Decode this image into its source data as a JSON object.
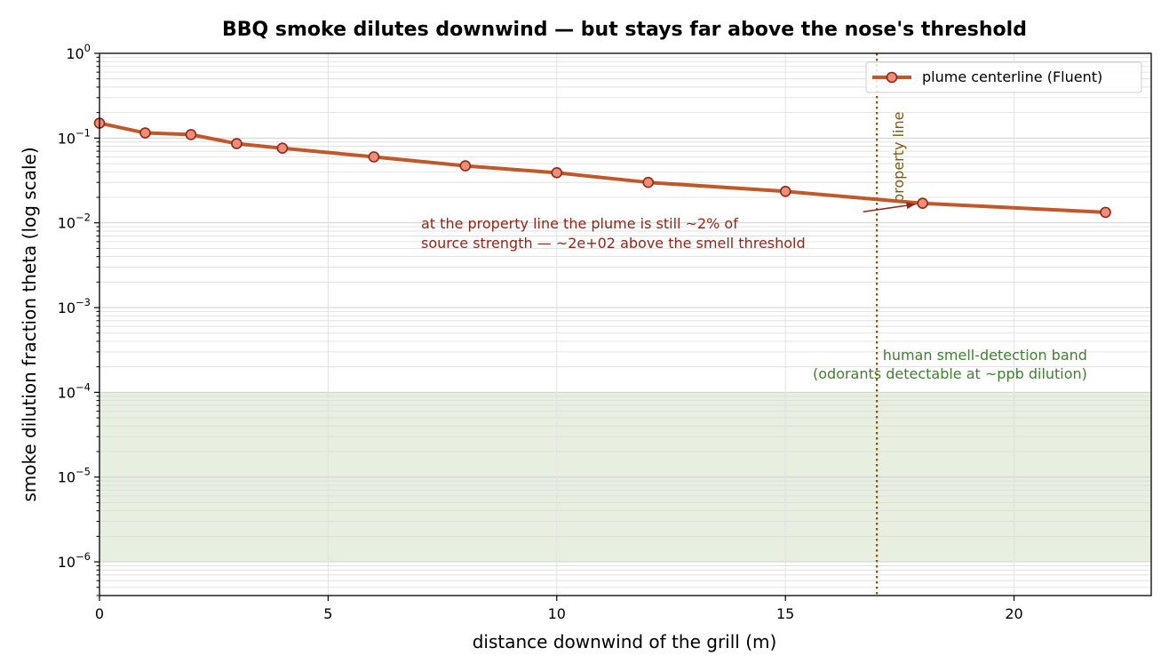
{
  "chart_data": {
    "type": "line",
    "title": "BBQ smoke dilutes downwind — but stays far above the nose's threshold",
    "xlabel": "distance downwind of the grill  (m)",
    "ylabel": "smoke dilution fraction  theta  (log scale)",
    "xlim": [
      0,
      23
    ],
    "ylim": [
      4e-07,
      1
    ],
    "yscale": "log",
    "grid": true,
    "x_ticks": [
      0,
      5,
      10,
      15,
      20
    ],
    "y_tick_exponents": [
      0,
      -1,
      -2,
      -3,
      -4,
      -5,
      -6
    ],
    "y_tick_base": "10",
    "legend_position": "top-right",
    "series": [
      {
        "name": "plume centerline (Fluent)",
        "color": "#c0582a",
        "marker_fill": "#f08c78",
        "marker_edge": "#8b2a1a",
        "x": [
          0,
          1,
          2,
          3,
          4,
          6,
          8,
          10,
          12,
          15,
          18,
          22
        ],
        "y": [
          0.15,
          0.115,
          0.11,
          0.086,
          0.076,
          0.06,
          0.047,
          0.039,
          0.03,
          0.0235,
          0.017,
          0.0133
        ]
      }
    ],
    "band": {
      "name": "human smell-detection band",
      "y_range": [
        1e-06,
        0.0001
      ],
      "color": "#e6efe0",
      "label_line1": "human smell-detection band",
      "label_line2": "(odorants detectable at ~ppb dilution)",
      "label_color": "#3f7f2f"
    },
    "vline": {
      "x": 17,
      "label": "property line",
      "color": "#7a5a10"
    },
    "annotation": {
      "line1": "at the property line the plume is still ~2% of",
      "line2": "source strength — ~2e+02 above the smell threshold",
      "color": "#8b2a1a",
      "arrow_to": [
        18,
        0.017
      ],
      "text_anchor": [
        16.7,
        0.0135
      ]
    }
  }
}
